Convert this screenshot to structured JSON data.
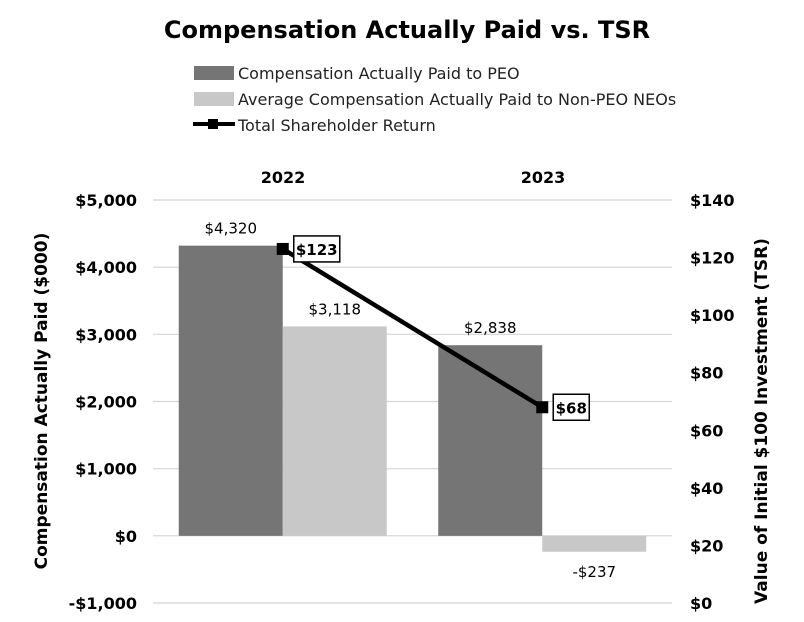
{
  "chart_data": {
    "type": "bar",
    "title": "Compensation Actually Paid vs. TSR",
    "categories": [
      "2022",
      "2023"
    ],
    "series": [
      {
        "name": "Compensation Actually Paid to PEO",
        "values": [
          4320,
          2838
        ],
        "labels": [
          "$4,320",
          "$2,838"
        ],
        "color": "#757575"
      },
      {
        "name": "Average Compensation Actually Paid to Non-PEO NEOs",
        "values": [
          3118,
          -237
        ],
        "labels": [
          "$3,118",
          "-$237"
        ],
        "color": "#c8c8c8"
      }
    ],
    "line_series": {
      "name": "Total Shareholder Return",
      "values": [
        123,
        68
      ],
      "labels": [
        "$123",
        "$68"
      ],
      "color": "#000000",
      "axis": "right"
    },
    "ylabel": "Compensation Actually Paid ($000)",
    "ylabel_right": "Value of Initial $100 Investment (TSR)",
    "ylim": [
      -1000,
      5000
    ],
    "ylim_right": [
      0,
      140
    ],
    "yticks": [
      {
        "value": 5000,
        "label": "$5,000"
      },
      {
        "value": 4000,
        "label": "$4,000"
      },
      {
        "value": 3000,
        "label": "$3,000"
      },
      {
        "value": 2000,
        "label": "$2,000"
      },
      {
        "value": 1000,
        "label": "$1,000"
      },
      {
        "value": 0,
        "label": "$0"
      },
      {
        "value": -1000,
        "label": "-$1,000"
      }
    ],
    "yticks_right": [
      {
        "value": 140,
        "label": "$140"
      },
      {
        "value": 120,
        "label": "$120"
      },
      {
        "value": 100,
        "label": "$100"
      },
      {
        "value": 80,
        "label": "$80"
      },
      {
        "value": 60,
        "label": "$60"
      },
      {
        "value": 40,
        "label": "$40"
      },
      {
        "value": 20,
        "label": "$20"
      },
      {
        "value": 0,
        "label": "$0"
      }
    ],
    "grid": true,
    "legend_position": "top"
  }
}
